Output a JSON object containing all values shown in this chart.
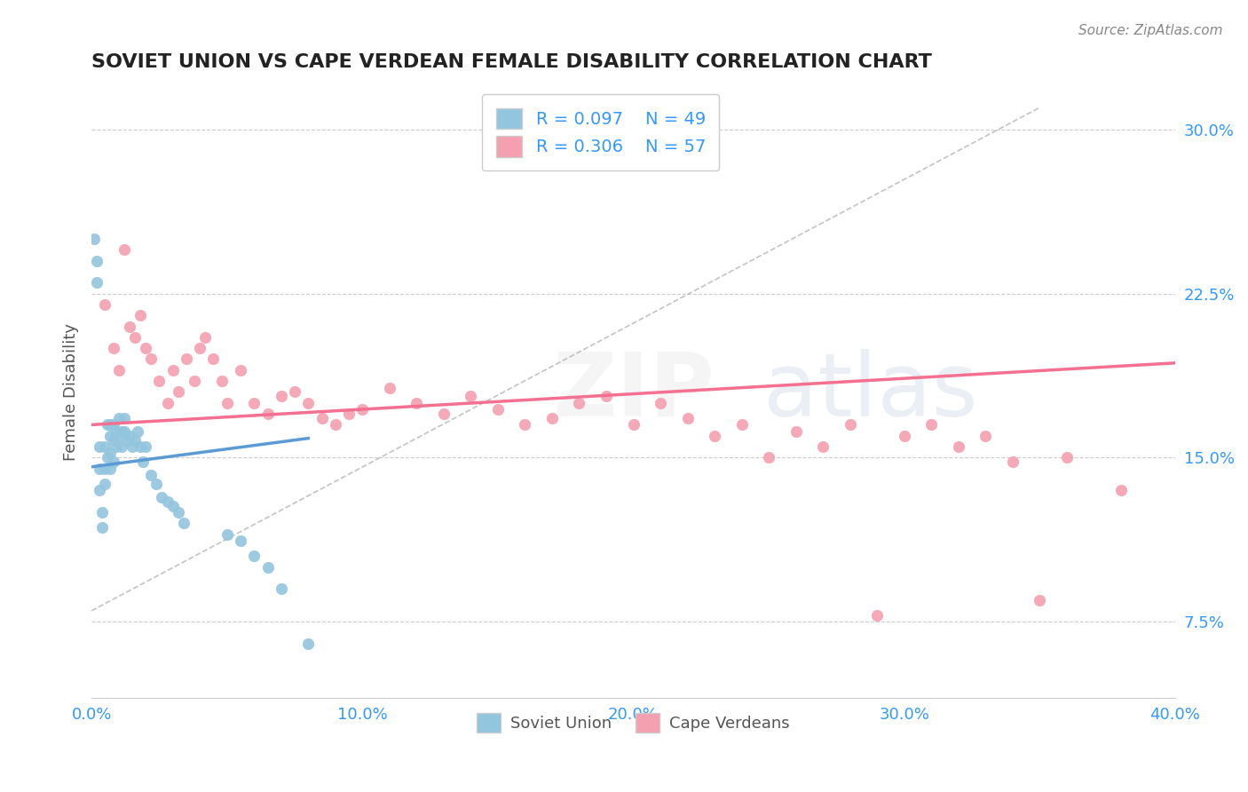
{
  "title": "SOVIET UNION VS CAPE VERDEAN FEMALE DISABILITY CORRELATION CHART",
  "source": "Source: ZipAtlas.com",
  "xlabel_bottom": "",
  "ylabel": "Female Disability",
  "x_min": 0.0,
  "x_max": 0.4,
  "y_min": 0.04,
  "y_max": 0.32,
  "y_ticks": [
    0.075,
    0.15,
    0.225,
    0.3
  ],
  "y_tick_labels": [
    "7.5%",
    "15.0%",
    "22.5%",
    "30.0%"
  ],
  "x_ticks": [
    0.0,
    0.1,
    0.2,
    0.3,
    0.4
  ],
  "x_tick_labels": [
    "0.0%",
    "10.0%",
    "20.0%",
    "30.0%",
    "40.0%"
  ],
  "legend_r1": "R = 0.097",
  "legend_n1": "N = 49",
  "legend_r2": "R = 0.306",
  "legend_n2": "N = 57",
  "color_soviet": "#92C5DE",
  "color_cape": "#F4A0B0",
  "color_soviet_line": "#5B9BD5",
  "color_cape_line": "#F47090",
  "color_dashed": "#AAAAAA",
  "watermark": "ZIPatlas",
  "soviet_x": [
    0.001,
    0.002,
    0.002,
    0.003,
    0.003,
    0.003,
    0.004,
    0.004,
    0.005,
    0.005,
    0.005,
    0.006,
    0.006,
    0.007,
    0.007,
    0.007,
    0.007,
    0.008,
    0.008,
    0.008,
    0.009,
    0.009,
    0.01,
    0.01,
    0.011,
    0.011,
    0.012,
    0.012,
    0.013,
    0.014,
    0.015,
    0.016,
    0.017,
    0.018,
    0.019,
    0.02,
    0.022,
    0.024,
    0.026,
    0.028,
    0.03,
    0.032,
    0.034,
    0.05,
    0.055,
    0.06,
    0.065,
    0.07,
    0.08
  ],
  "soviet_y": [
    0.25,
    0.24,
    0.23,
    0.155,
    0.145,
    0.135,
    0.125,
    0.118,
    0.155,
    0.145,
    0.138,
    0.165,
    0.15,
    0.165,
    0.16,
    0.152,
    0.145,
    0.165,
    0.158,
    0.148,
    0.162,
    0.155,
    0.168,
    0.16,
    0.162,
    0.155,
    0.168,
    0.162,
    0.158,
    0.16,
    0.155,
    0.158,
    0.162,
    0.155,
    0.148,
    0.155,
    0.142,
    0.138,
    0.132,
    0.13,
    0.128,
    0.125,
    0.12,
    0.115,
    0.112,
    0.105,
    0.1,
    0.09,
    0.065
  ],
  "cape_x": [
    0.005,
    0.008,
    0.01,
    0.012,
    0.014,
    0.016,
    0.018,
    0.02,
    0.022,
    0.025,
    0.028,
    0.03,
    0.032,
    0.035,
    0.038,
    0.04,
    0.042,
    0.045,
    0.048,
    0.05,
    0.055,
    0.06,
    0.065,
    0.07,
    0.075,
    0.08,
    0.085,
    0.09,
    0.095,
    0.1,
    0.11,
    0.12,
    0.13,
    0.14,
    0.15,
    0.16,
    0.17,
    0.18,
    0.19,
    0.2,
    0.21,
    0.22,
    0.23,
    0.24,
    0.25,
    0.26,
    0.27,
    0.28,
    0.29,
    0.3,
    0.31,
    0.32,
    0.33,
    0.34,
    0.35,
    0.36,
    0.38
  ],
  "cape_y": [
    0.22,
    0.2,
    0.19,
    0.245,
    0.21,
    0.205,
    0.215,
    0.2,
    0.195,
    0.185,
    0.175,
    0.19,
    0.18,
    0.195,
    0.185,
    0.2,
    0.205,
    0.195,
    0.185,
    0.175,
    0.19,
    0.175,
    0.17,
    0.178,
    0.18,
    0.175,
    0.168,
    0.165,
    0.17,
    0.172,
    0.182,
    0.175,
    0.17,
    0.178,
    0.172,
    0.165,
    0.168,
    0.175,
    0.178,
    0.165,
    0.175,
    0.168,
    0.16,
    0.165,
    0.15,
    0.162,
    0.155,
    0.165,
    0.078,
    0.16,
    0.165,
    0.155,
    0.16,
    0.148,
    0.085,
    0.15,
    0.135
  ]
}
